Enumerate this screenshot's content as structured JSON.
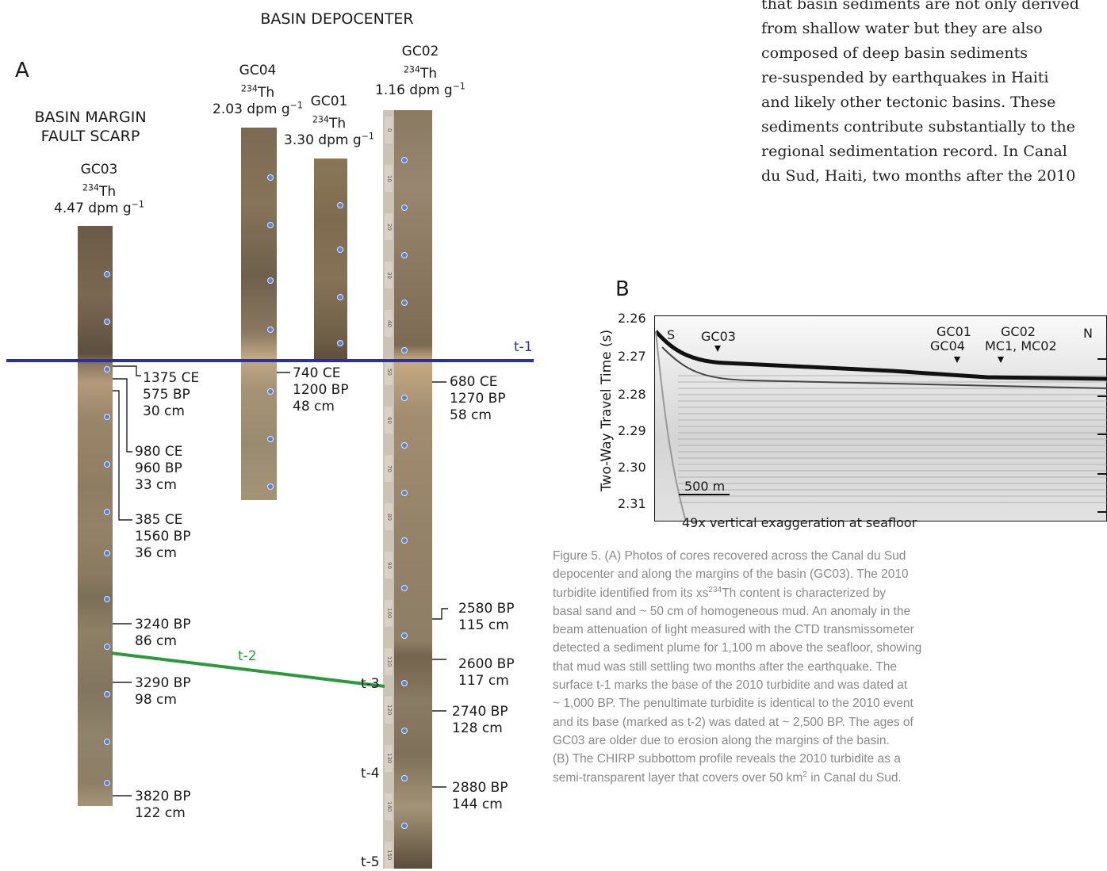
{
  "panel_a": {
    "letter": "A",
    "title_depocenter": "BASIN DEPOCENTER",
    "title_margin_line1": "BASIN MARGIN",
    "title_margin_line2": "FAULT SCARP",
    "cores": [
      {
        "id": "GC03",
        "th_label": "234",
        "th_sym": "Th",
        "th_value": "4.47 dpm g",
        "th_unit_sup": "−1"
      },
      {
        "id": "GC04",
        "th_label": "234",
        "th_sym": "Th",
        "th_value": "2.03 dpm g",
        "th_unit_sup": "−1"
      },
      {
        "id": "GC01",
        "th_label": "234",
        "th_sym": "Th",
        "th_value": "3.30 dpm g",
        "th_unit_sup": "−1"
      },
      {
        "id": "GC02",
        "th_label": "234",
        "th_sym": "Th",
        "th_value": "1.16 dpm g",
        "th_unit_sup": "−1"
      }
    ],
    "surfaces": {
      "t1": "t-1",
      "t2": "t-2",
      "t3": "t-3",
      "t4": "t-4",
      "t5": "t-5"
    },
    "gc03_ages": [
      {
        "l1": "1375 CE",
        "l2": "575 BP",
        "l3": "30 cm"
      },
      {
        "l1": "980 CE",
        "l2": "960 BP",
        "l3": "33 cm"
      },
      {
        "l1": "385 CE",
        "l2": "1560 BP",
        "l3": "36 cm"
      },
      {
        "l1": "3240 BP",
        "l2": "86 cm"
      },
      {
        "l1": "3290 BP",
        "l2": "98 cm"
      },
      {
        "l1": "3820 BP",
        "l2": "122 cm"
      }
    ],
    "gc04_ages": [
      {
        "l1": "740 CE",
        "l2": "1200 BP",
        "l3": "48 cm"
      }
    ],
    "gc02_ages": [
      {
        "l1": "680 CE",
        "l2": "1270 BP",
        "l3": "58 cm"
      },
      {
        "l1": "2580 BP",
        "l2": "115 cm"
      },
      {
        "l1": "2600 BP",
        "l2": "117 cm"
      },
      {
        "l1": "2740 BP",
        "l2": "128 cm"
      },
      {
        "l1": "2880 BP",
        "l2": "144 cm"
      }
    ],
    "ruler_marks": [
      "0",
      "10",
      "20",
      "30",
      "40",
      "50",
      "60",
      "70",
      "80",
      "90",
      "100",
      "110",
      "120",
      "130",
      "140",
      "150"
    ],
    "colors": {
      "t1_line": "#2e3191",
      "t2_line": "#2b9a3a",
      "t2_label": "#2b9a3a",
      "t1_label": "#2e3191"
    }
  },
  "body_text": {
    "lines": [
      "that basin sediments are not only derived",
      "from shallow water but they are also",
      "composed of deep basin sediments",
      "re-suspended by earthquakes in Haiti",
      "and likely other tectonic basins. These",
      "sediments contribute substantially to the",
      "regional sedimentation record. In Canal",
      "du Sud, Haiti, two months after the 2010"
    ]
  },
  "panel_b": {
    "letter": "B",
    "ylabel": "Two-Way Travel Time (s)",
    "yticks": [
      "2.26",
      "2.27",
      "2.28",
      "2.29",
      "2.30",
      "2.31"
    ],
    "label_s": "S",
    "label_n": "N",
    "label_gc03": "GC03",
    "label_gc01": "GC01",
    "label_gc04": "GC04",
    "label_gc02": "GC02",
    "label_mc": "MC1, MC02",
    "scale_bar": "500 m",
    "note": "49x vertical exaggeration at seafloor"
  },
  "caption": {
    "lines": [
      "Figure 5. (A) Photos of cores recovered across the Canal du Sud",
      "depocenter and along the margins of the basin (GC03). The 2010",
      "turbidite identified from its xs",
      "basal sand and ~ 50 cm of homogeneous mud. An anomaly in the",
      "beam attenuation of light measured with the CTD transmissometer",
      "detected a sediment plume for 1,100 m above the seafloor, showing",
      "that mud was still settling two months after the earthquake. The",
      "surface t-1 marks the base of the 2010 turbidite and was dated at",
      "~ 1,000 BP. The penultimate turbidite is identical to the 2010 event",
      "and its base (marked as t-2) was dated at ~ 2,500 BP. The ages of",
      "GC03 are older due to erosion along the margins of the basin.",
      "(B) The CHIRP subbottom profile reveals the 2010 turbidite as a",
      "semi-transparent layer that covers over 50 km"
    ],
    "line3_sup": "234",
    "line3_rest": "Th content is characterized by",
    "line13_sup": "2",
    "line13_rest": " in Canal du Sud."
  }
}
